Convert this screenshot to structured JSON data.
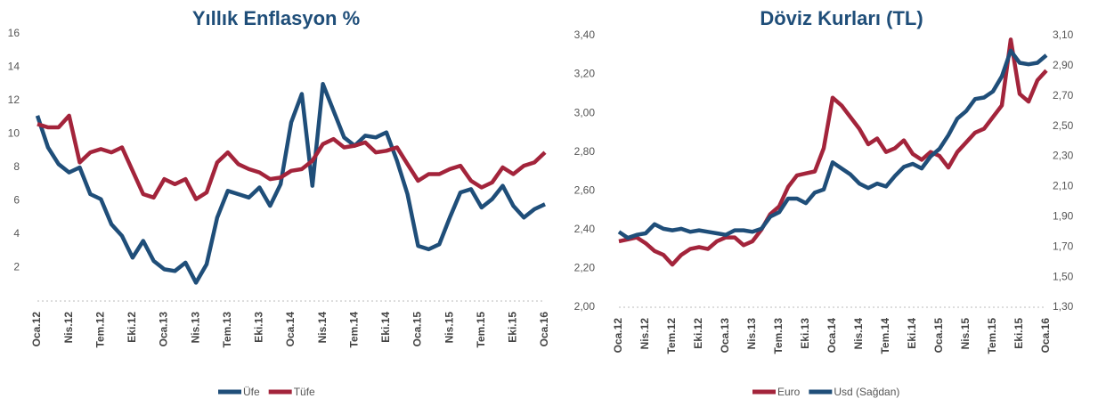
{
  "chart_data": [
    {
      "type": "line",
      "title": "Yıllık Enflasyon %",
      "categories": [
        "Oca.12",
        null,
        null,
        "Nis.12",
        null,
        null,
        "Tem.12",
        null,
        null,
        "Eki.12",
        null,
        null,
        "Oca.13",
        null,
        null,
        "Nis.13",
        null,
        null,
        "Tem.13",
        null,
        null,
        "Eki.13",
        null,
        null,
        "Oca.14",
        null,
        null,
        "Nis.14",
        null,
        null,
        "Tem.14",
        null,
        null,
        "Eki.14",
        null,
        null,
        "Oca.15",
        null,
        null,
        "Nis.15",
        null,
        null,
        "Tem.15",
        null,
        null,
        "Eki.15",
        null,
        null,
        "Oca.16"
      ],
      "series": [
        {
          "name": "Üfe",
          "color": "#1f4e79",
          "values": [
            11.1,
            9.2,
            8.2,
            7.7,
            8.0,
            6.4,
            6.1,
            4.6,
            3.9,
            2.6,
            3.6,
            2.4,
            1.9,
            1.8,
            2.3,
            1.1,
            2.2,
            5.0,
            6.6,
            6.4,
            6.2,
            6.8,
            5.7,
            7.0,
            10.7,
            12.4,
            6.9,
            13.0,
            11.4,
            9.8,
            9.3,
            9.9,
            9.8,
            10.1,
            8.4,
            6.4,
            3.3,
            3.1,
            3.4,
            5.0,
            6.5,
            6.7,
            5.6,
            6.1,
            6.9,
            5.7,
            5.0,
            5.5,
            5.8
          ]
        },
        {
          "name": "Tüfe",
          "color": "#a3243b",
          "values": [
            10.6,
            10.4,
            10.4,
            11.1,
            8.3,
            8.9,
            9.1,
            8.9,
            9.2,
            7.8,
            6.4,
            6.2,
            7.3,
            7.0,
            7.3,
            6.1,
            6.5,
            8.3,
            8.9,
            8.2,
            7.9,
            7.7,
            7.3,
            7.4,
            7.8,
            7.9,
            8.4,
            9.4,
            9.7,
            9.2,
            9.3,
            9.5,
            8.9,
            9.0,
            9.2,
            8.2,
            7.2,
            7.6,
            7.6,
            7.9,
            8.1,
            7.2,
            6.8,
            7.1,
            8.0,
            7.6,
            8.1,
            8.3,
            8.9
          ]
        }
      ],
      "ylim": [
        0,
        16
      ],
      "yticks": [
        2,
        4,
        6,
        8,
        10,
        12,
        14,
        16
      ],
      "grid": false
    },
    {
      "type": "line",
      "title": "Döviz Kurları (TL)",
      "categories": [
        "Oca.12",
        null,
        null,
        "Nis.12",
        null,
        null,
        "Tem.12",
        null,
        null,
        "Eki.12",
        null,
        null,
        "Oca.13",
        null,
        null,
        "Nis.13",
        null,
        null,
        "Tem.13",
        null,
        null,
        "Eki.13",
        null,
        null,
        "Oca.14",
        null,
        null,
        "Nis.14",
        null,
        null,
        "Tem.14",
        null,
        null,
        "Eki.14",
        null,
        null,
        "Oca.15",
        null,
        null,
        "Nis.15",
        null,
        null,
        "Tem.15",
        null,
        null,
        "Eki.15",
        null,
        null,
        "Oca.16"
      ],
      "series": [
        {
          "name": "Euro",
          "color": "#a3243b",
          "values": [
            2.34,
            2.35,
            2.36,
            2.33,
            2.29,
            2.27,
            2.22,
            2.27,
            2.3,
            2.31,
            2.3,
            2.34,
            2.36,
            2.36,
            2.32,
            2.34,
            2.4,
            2.48,
            2.52,
            2.62,
            2.68,
            2.69,
            2.7,
            2.82,
            3.08,
            3.04,
            2.98,
            2.92,
            2.84,
            2.87,
            2.8,
            2.82,
            2.86,
            2.79,
            2.76,
            2.8,
            2.78,
            2.72,
            2.8,
            2.85,
            2.9,
            2.92,
            2.98,
            3.04,
            3.38,
            3.1,
            3.06,
            3.17,
            3.22
          ]
        },
        {
          "name": "Usd (Sağdan)",
          "color": "#1f4e79",
          "axis": "y2",
          "values": [
            1.8,
            1.76,
            1.78,
            1.79,
            1.85,
            1.82,
            1.81,
            1.82,
            1.8,
            1.81,
            1.8,
            1.79,
            1.78,
            1.81,
            1.81,
            1.8,
            1.82,
            1.9,
            1.93,
            2.02,
            2.02,
            1.99,
            2.06,
            2.08,
            2.26,
            2.22,
            2.18,
            2.12,
            2.09,
            2.12,
            2.1,
            2.17,
            2.23,
            2.25,
            2.22,
            2.3,
            2.35,
            2.44,
            2.55,
            2.6,
            2.68,
            2.69,
            2.73,
            2.83,
            3.0,
            2.92,
            2.91,
            2.92,
            2.97
          ]
        }
      ],
      "ylim": [
        2.0,
        3.4
      ],
      "yticks": [
        {
          "value": 2.0,
          "label": "2,00"
        },
        {
          "value": 2.2,
          "label": "2,20"
        },
        {
          "value": 2.4,
          "label": "2,40"
        },
        {
          "value": 2.6,
          "label": "2,60"
        },
        {
          "value": 2.8,
          "label": "2,80"
        },
        {
          "value": 3.0,
          "label": "3,00"
        },
        {
          "value": 3.2,
          "label": "3,20"
        },
        {
          "value": 3.4,
          "label": "3,40"
        }
      ],
      "y2lim": [
        1.3,
        3.1
      ],
      "y2ticks": [
        {
          "value": 1.3,
          "label": "1,30"
        },
        {
          "value": 1.5,
          "label": "1,50"
        },
        {
          "value": 1.7,
          "label": "1,70"
        },
        {
          "value": 1.9,
          "label": "1,90"
        },
        {
          "value": 2.1,
          "label": "2,10"
        },
        {
          "value": 2.3,
          "label": "2,30"
        },
        {
          "value": 2.5,
          "label": "2,50"
        },
        {
          "value": 2.7,
          "label": "2,70"
        },
        {
          "value": 2.9,
          "label": "2,90"
        },
        {
          "value": 3.1,
          "label": "3,10"
        }
      ],
      "grid": false
    }
  ]
}
